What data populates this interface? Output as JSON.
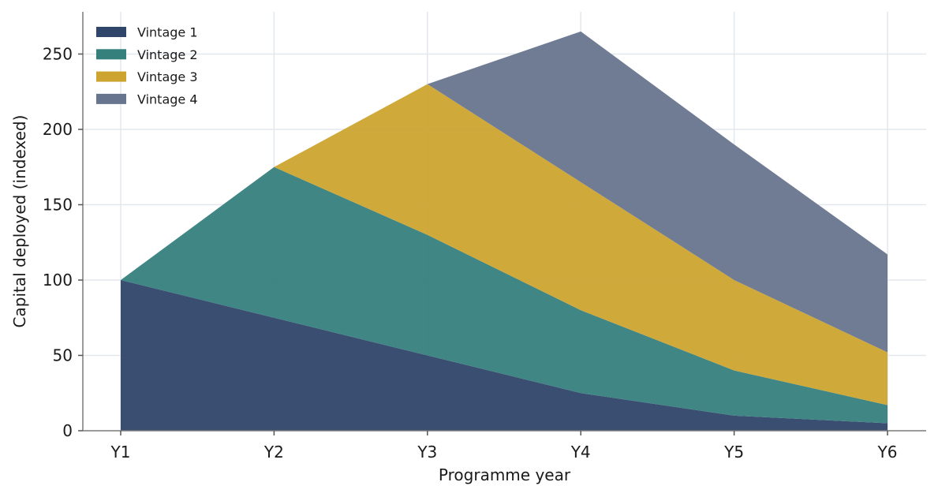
{
  "chart_data": {
    "type": "area",
    "stacked": true,
    "x": [
      "Y1",
      "Y2",
      "Y3",
      "Y4",
      "Y5",
      "Y6"
    ],
    "xlabel": "Programme year",
    "ylabel": "Capital deployed (indexed)",
    "ylim": [
      0,
      278
    ],
    "yticks": [
      0,
      50,
      100,
      150,
      200,
      250
    ],
    "grid": true,
    "legend_position": "top-left",
    "series": [
      {
        "name": "Vintage 1",
        "color": "#2f4569",
        "values": [
          100,
          75,
          50,
          25,
          10,
          5
        ],
        "start_index": 0
      },
      {
        "name": "Vintage 2",
        "color": "#35807d",
        "values": [
          0,
          100,
          80,
          55,
          30,
          12
        ],
        "start_index": 0
      },
      {
        "name": "Vintage 3",
        "color": "#cca42f",
        "values": [
          0,
          0,
          100,
          85,
          60,
          35
        ],
        "start_index": 1
      },
      {
        "name": "Vintage 4",
        "color": "#67758e",
        "values": [
          0,
          0,
          0,
          100,
          90,
          65
        ],
        "start_index": 2
      }
    ]
  }
}
